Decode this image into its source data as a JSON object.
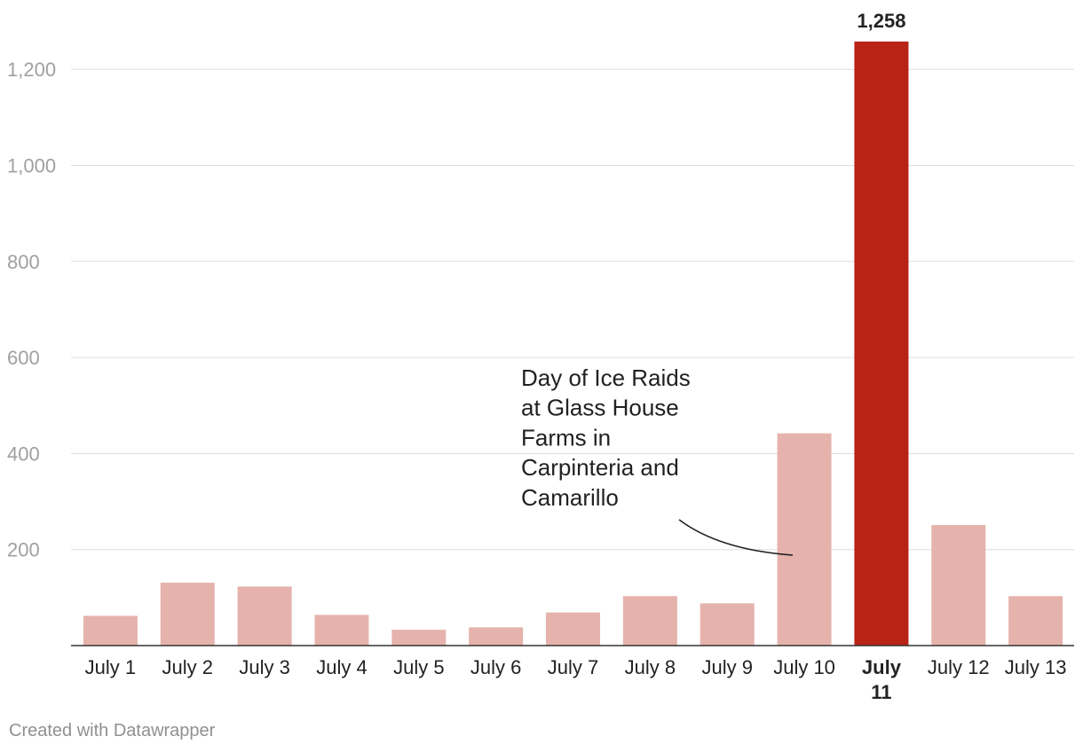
{
  "chart_data": {
    "type": "bar",
    "title": "",
    "xlabel": "",
    "ylabel": "",
    "categories": [
      "July 1",
      "July 2",
      "July 3",
      "July 4",
      "July 5",
      "July 6",
      "July 7",
      "July 8",
      "July 9",
      "July 10",
      "July 11",
      "July 12",
      "July 13"
    ],
    "values": [
      62,
      131,
      123,
      64,
      33,
      38,
      69,
      103,
      88,
      442,
      1258,
      251,
      103
    ],
    "ylim": [
      0,
      1300
    ],
    "yticks": [
      200,
      400,
      600,
      800,
      1000,
      1200
    ],
    "ytick_labels": [
      "200",
      "400",
      "600",
      "800",
      "1,000",
      "1,200"
    ],
    "highlight_index": 10,
    "highlight_value_label": "1,258",
    "grid": true,
    "annotation": {
      "lines": [
        "Day of Ice Raids",
        "at Glass House",
        "Farms in",
        "Carpinteria and",
        "Camarillo"
      ],
      "points_to": "July 10"
    }
  },
  "colors": {
    "bar": "#e5b3ac",
    "highlight": "#b82316",
    "grid": "#dddddd",
    "axis_text": "#a0a0a0"
  },
  "footer": {
    "credit": "Created with Datawrapper"
  }
}
